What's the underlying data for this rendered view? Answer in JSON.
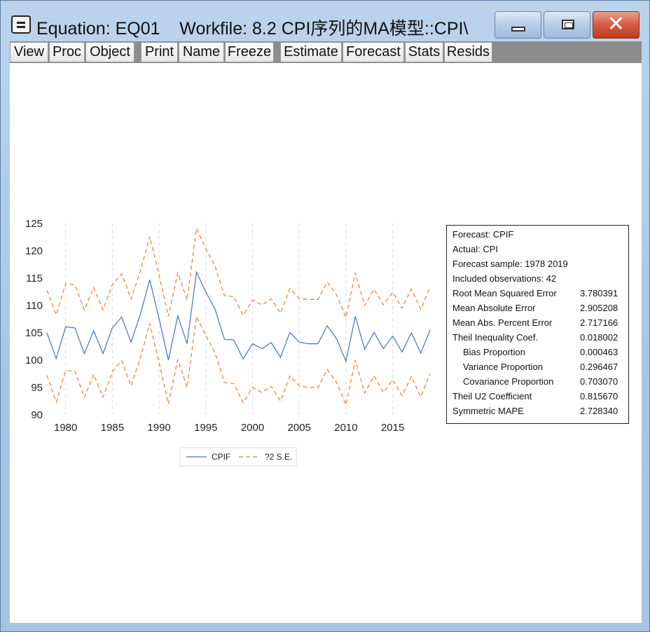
{
  "window": {
    "title": "Equation: EQ01    Workfile: 8.2 CPI序列的MA模型::CPI\\"
  },
  "toolbar": [
    {
      "key": "view",
      "label": "View"
    },
    {
      "key": "proc",
      "label": "Proc"
    },
    {
      "key": "object",
      "label": "Object"
    },
    {
      "key": "print",
      "label": "Print"
    },
    {
      "key": "name",
      "label": "Name"
    },
    {
      "key": "freeze",
      "label": "Freeze"
    },
    {
      "key": "estimate",
      "label": "Estimate"
    },
    {
      "key": "forecast",
      "label": "Forecast"
    },
    {
      "key": "stats",
      "label": "Stats"
    },
    {
      "key": "resids",
      "label": "Resids"
    }
  ],
  "chart_data": {
    "type": "line",
    "x": [
      1978,
      1979,
      1980,
      1981,
      1982,
      1983,
      1984,
      1985,
      1986,
      1987,
      1988,
      1989,
      1990,
      1991,
      1992,
      1993,
      1994,
      1995,
      1996,
      1997,
      1998,
      1999,
      2000,
      2001,
      2002,
      2003,
      2004,
      2005,
      2006,
      2007,
      2008,
      2009,
      2010,
      2011,
      2012,
      2013,
      2014,
      2015,
      2016,
      2017,
      2018,
      2019
    ],
    "series": [
      {
        "name": "CPIF",
        "color": "#4472c4",
        "dash": "solid",
        "values": [
          105.0,
          100.3,
          106.1,
          105.9,
          101.2,
          105.4,
          101.2,
          105.9,
          107.9,
          103.3,
          108.4,
          114.7,
          107.6,
          100.0,
          108.1,
          103.0,
          116.1,
          112.5,
          109.3,
          103.8,
          103.7,
          100.2,
          103.0,
          102.1,
          103.2,
          100.5,
          105.1,
          103.3,
          103.0,
          103.0,
          106.3,
          103.9,
          99.8,
          108.0,
          102.0,
          105.1,
          102.1,
          104.4,
          101.5,
          105.0,
          101.3,
          105.5
        ]
      },
      {
        "name": "?2 S.E.",
        "color": "#ed7d31",
        "dash": "dashed",
        "band": true,
        "upper": [
          112.8,
          108.3,
          114.0,
          113.8,
          109.2,
          113.3,
          109.2,
          113.8,
          115.8,
          111.2,
          116.3,
          122.6,
          115.6,
          108.0,
          116.0,
          111.0,
          124.1,
          120.4,
          117.2,
          111.8,
          111.6,
          108.2,
          111.0,
          110.1,
          111.2,
          108.6,
          113.1,
          111.3,
          111.1,
          111.1,
          114.3,
          111.9,
          107.8,
          116.0,
          110.0,
          113.0,
          110.1,
          112.4,
          109.5,
          113.0,
          109.3,
          113.4
        ],
        "lower": [
          97.2,
          92.3,
          98.1,
          98.0,
          93.2,
          97.4,
          93.2,
          97.9,
          99.9,
          95.3,
          100.4,
          106.7,
          99.6,
          92.0,
          100.1,
          95.0,
          108.0,
          104.5,
          101.3,
          95.9,
          95.7,
          92.2,
          95.0,
          94.1,
          95.2,
          92.5,
          97.1,
          95.3,
          95.0,
          95.0,
          98.3,
          95.9,
          91.8,
          100.0,
          94.0,
          97.1,
          94.1,
          96.4,
          93.5,
          97.0,
          93.3,
          97.5
        ]
      }
    ],
    "title": "",
    "xlabel": "",
    "ylabel": "",
    "ylim": [
      90,
      125
    ],
    "yticks": [
      "90",
      "95",
      "100",
      "105",
      "110",
      "115",
      "120",
      "125"
    ],
    "xticks": [
      "1980",
      "1985",
      "1990",
      "1995",
      "2000",
      "2005",
      "2010",
      "2015"
    ],
    "grid": "vertical",
    "legend_placement": "bottom"
  },
  "stats_box": [
    {
      "label": "Forecast: CPIF",
      "value": ""
    },
    {
      "label": "Actual: CPI",
      "value": ""
    },
    {
      "label": "Forecast sample: 1978 2019",
      "value": ""
    },
    {
      "label": "Included observations: 42",
      "value": ""
    },
    {
      "label": "Root Mean Squared Error",
      "value": "3.780391"
    },
    {
      "label": "Mean Absolute Error",
      "value": "2.905208"
    },
    {
      "label": "Mean Abs. Percent Error",
      "value": "2.717166"
    },
    {
      "label": "Theil Inequality Coef.",
      "value": "0.018002"
    },
    {
      "label": "Bias Proportion",
      "value": "0.000463",
      "indent": true
    },
    {
      "label": "Variance Proportion",
      "value": "0.296467",
      "indent": true
    },
    {
      "label": "Covariance Proportion",
      "value": "0.703070",
      "indent": true
    },
    {
      "label": "Theil U2 Coefficient",
      "value": "0.815670"
    },
    {
      "label": "Symmetric MAPE",
      "value": "2.728340"
    }
  ]
}
